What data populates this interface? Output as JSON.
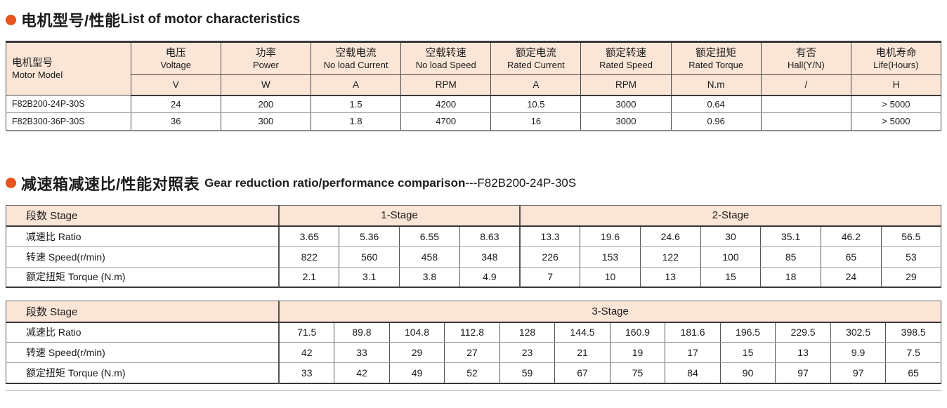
{
  "theme": {
    "accent_color": "#e8541d",
    "table_header_bg": "#fbe5d6"
  },
  "section1": {
    "title_zh": "电机型号/性能",
    "title_en": "List of motor characteristics"
  },
  "motor_table": {
    "model_header_zh": "电机型号",
    "model_header_en": "Motor Model",
    "columns": [
      {
        "zh": "电压",
        "en": "Voltage"
      },
      {
        "zh": "功率",
        "en": "Power"
      },
      {
        "zh": "空载电流",
        "en": "No load Current"
      },
      {
        "zh": "空载转速",
        "en": "No load Speed"
      },
      {
        "zh": "额定电流",
        "en": "Rated Current"
      },
      {
        "zh": "额定转速",
        "en": "Rated Speed"
      },
      {
        "zh": "额定扭矩",
        "en": "Rated Torque"
      },
      {
        "zh": "有否",
        "en": "Hall(Y/N)"
      },
      {
        "zh": "电机寿命",
        "en": "Life(Hours)"
      }
    ],
    "units": [
      "V",
      "W",
      "A",
      "RPM",
      "A",
      "RPM",
      "N.m",
      "/",
      "H"
    ],
    "rows": [
      {
        "model": "F82B200-24P-30S",
        "values": [
          "24",
          "200",
          "1.5",
          "4200",
          "10.5",
          "3000",
          "0.64",
          "",
          "> 5000"
        ]
      },
      {
        "model": "F82B300-36P-30S",
        "values": [
          "36",
          "300",
          "1.8",
          "4700",
          "16",
          "3000",
          "0.96",
          "",
          "> 5000"
        ]
      }
    ]
  },
  "section2": {
    "title_zh": "减速箱减速比/性能对照表",
    "title_en": "Gear reduction ratio/performance comparison",
    "title_suffix": "---F82B200-24P-30S"
  },
  "gear_table_stage12": {
    "stage_label": "段数 Stage",
    "groups": [
      "1-Stage",
      "2-Stage"
    ],
    "rows": [
      {
        "label": "减速比 Ratio",
        "values": [
          "3.65",
          "5.36",
          "6.55",
          "8.63",
          "13.3",
          "19.6",
          "24.6",
          "30",
          "35.1",
          "46.2",
          "56.5"
        ]
      },
      {
        "label": "转速 Speed(r/min)",
        "values": [
          "822",
          "560",
          "458",
          "348",
          "226",
          "153",
          "122",
          "100",
          "85",
          "65",
          "53"
        ]
      },
      {
        "label": "额定扭矩 Torque (N.m)",
        "values": [
          "2.1",
          "3.1",
          "3.8",
          "4.9",
          "7",
          "10",
          "13",
          "15",
          "18",
          "24",
          "29"
        ]
      }
    ]
  },
  "gear_table_stage3": {
    "stage_label": "段数 Stage",
    "group": "3-Stage",
    "rows": [
      {
        "label": "减速比 Ratio",
        "values": [
          "71.5",
          "89.8",
          "104.8",
          "112.8",
          "128",
          "144.5",
          "160.9",
          "181.6",
          "196.5",
          "229.5",
          "302.5",
          "398.5"
        ]
      },
      {
        "label": "转速 Speed(r/min)",
        "values": [
          "42",
          "33",
          "29",
          "27",
          "23",
          "21",
          "19",
          "17",
          "15",
          "13",
          "9.9",
          "7.5"
        ]
      },
      {
        "label": "额定扭矩 Torque (N.m)",
        "values": [
          "33",
          "42",
          "49",
          "52",
          "59",
          "67",
          "75",
          "84",
          "90",
          "97",
          "97",
          "65"
        ]
      }
    ]
  }
}
